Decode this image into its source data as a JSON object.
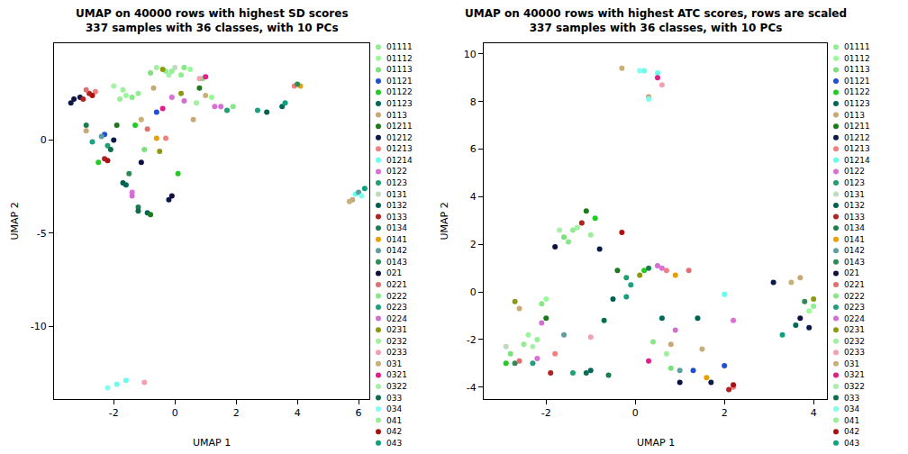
{
  "chart_data": [
    {
      "type": "scatter",
      "title": "UMAP on 40000 rows with highest SD scores",
      "subtitle": "337 samples with 36 classes, with 10 PCs",
      "x_label": "UMAP 1",
      "y_label": "UMAP 2",
      "xlim": [
        -3.95,
        6.35
      ],
      "ylim": [
        -13.9,
        5.2
      ],
      "xticks": [
        -2,
        0,
        2,
        4,
        6
      ],
      "yticks": [
        -10,
        -5,
        0
      ],
      "grid": false,
      "legend": "right",
      "marker": "circle",
      "series": [
        {
          "name": "01111",
          "color": "#90ee90",
          "x": [
            -0.3,
            0.2,
            -1.2
          ],
          "y": [
            3.7,
            3.5,
            2.5
          ]
        },
        {
          "name": "01112",
          "color": "#98fb98",
          "x": [
            0.5,
            -1.6,
            1.2
          ],
          "y": [
            3.8,
            2.4,
            2.3
          ]
        },
        {
          "name": "01113",
          "color": "#7ce07c",
          "x": [
            -0.8,
            0.9,
            -1.0
          ],
          "y": [
            3.6,
            3.3,
            -0.5
          ]
        },
        {
          "name": "01121",
          "color": "#1f4fd8",
          "x": [
            -2.3,
            -0.6
          ],
          "y": [
            0.3,
            1.5
          ]
        },
        {
          "name": "01122",
          "color": "#22cc22",
          "x": [
            -2.5,
            -1.3,
            0.1
          ],
          "y": [
            -1.2,
            0.8,
            -1.8
          ]
        },
        {
          "name": "01123",
          "color": "#00695c",
          "x": [
            -1.6,
            3.5,
            -0.9
          ],
          "y": [
            -2.4,
            1.8,
            -3.9
          ]
        },
        {
          "name": "0113",
          "color": "#c8a878",
          "x": [
            -2.9,
            0.6,
            -0.7,
            5.8
          ],
          "y": [
            0.5,
            1.1,
            2.8,
            -3.2
          ]
        },
        {
          "name": "01211",
          "color": "#1b7a1b",
          "x": [
            -1.9,
            -0.8,
            0.8
          ],
          "y": [
            0.8,
            -4.0,
            2.8
          ]
        },
        {
          "name": "01212",
          "color": "#0a1a4a",
          "x": [
            -3.4,
            -3.1,
            -0.2,
            -2.0
          ],
          "y": [
            2.0,
            2.3,
            -3.2,
            0.0
          ]
        },
        {
          "name": "01213",
          "color": "#f08080",
          "x": [
            -2.6,
            -0.3,
            3.9
          ],
          "y": [
            2.6,
            0.1,
            2.9
          ]
        },
        {
          "name": "01214",
          "color": "#66ffee",
          "x": [
            -1.9,
            -1.6,
            5.9
          ],
          "y": [
            -13.1,
            -12.9,
            -2.9
          ]
        },
        {
          "name": "0122",
          "color": "#da70d6",
          "x": [
            -1.4,
            1.3,
            -0.1
          ],
          "y": [
            -2.8,
            1.8,
            2.3
          ]
        },
        {
          "name": "0123",
          "color": "#20a070",
          "x": [
            1.7,
            -2.2
          ],
          "y": [
            1.6,
            -0.3
          ]
        },
        {
          "name": "0131",
          "color": "#c0dcc0",
          "x": [
            0.0
          ],
          "y": [
            3.9
          ]
        },
        {
          "name": "0132",
          "color": "#006050",
          "x": [
            -1.7,
            3.0
          ],
          "y": [
            -2.3,
            1.5
          ]
        },
        {
          "name": "0133",
          "color": "#b22222",
          "x": [
            -2.8,
            -2.3,
            -3.0
          ],
          "y": [
            2.5,
            -1.0,
            2.2
          ]
        },
        {
          "name": "0134",
          "color": "#1a7f4e",
          "x": [
            -1.2,
            -2.9
          ],
          "y": [
            -3.6,
            0.8
          ]
        },
        {
          "name": "0141",
          "color": "#e8a000",
          "x": [
            4.1,
            -0.6
          ],
          "y": [
            2.9,
            0.1
          ]
        },
        {
          "name": "0142",
          "color": "#5f9ea0",
          "x": [
            6.0,
            -2.4
          ],
          "y": [
            -2.8,
            0.2
          ]
        },
        {
          "name": "0143",
          "color": "#2e8b57",
          "x": [
            4.0,
            -1.5
          ],
          "y": [
            3.0,
            -1.8
          ]
        },
        {
          "name": "021",
          "color": "#101040",
          "x": [
            -3.3,
            -0.1,
            -1.1
          ],
          "y": [
            2.2,
            -3.0,
            -1.2
          ]
        },
        {
          "name": "0221",
          "color": "#e07070",
          "x": [
            -0.9,
            -2.9
          ],
          "y": [
            0.6,
            2.7
          ]
        },
        {
          "name": "0222",
          "color": "#88e888",
          "x": [
            0.3,
            1.9,
            -1.4
          ],
          "y": [
            3.9,
            1.8,
            2.3
          ]
        },
        {
          "name": "0223",
          "color": "#20a080",
          "x": [
            -2.7,
            2.7
          ],
          "y": [
            -0.1,
            1.6
          ]
        },
        {
          "name": "0224",
          "color": "#d070d0",
          "x": [
            -1.4,
            0.3,
            1.5
          ],
          "y": [
            -3.0,
            2.1,
            1.8
          ]
        },
        {
          "name": "0231",
          "color": "#8b9a10",
          "x": [
            -0.4,
            0.2,
            -0.5
          ],
          "y": [
            3.8,
            2.5,
            -0.6
          ]
        },
        {
          "name": "0232",
          "color": "#a0f0a0",
          "x": [
            -0.6,
            -1.7,
            0.7
          ],
          "y": [
            3.9,
            2.7,
            2.0
          ]
        },
        {
          "name": "0233",
          "color": "#f5a0b0",
          "x": [
            -1.0,
            0.8
          ],
          "y": [
            -13.0,
            3.3
          ]
        },
        {
          "name": "031",
          "color": "#c8b078",
          "x": [
            -1.1,
            5.7,
            1.0
          ],
          "y": [
            1.1,
            -3.3,
            2.4
          ]
        },
        {
          "name": "0321",
          "color": "#e0208a",
          "x": [
            1.0,
            -0.4
          ],
          "y": [
            3.4,
            1.7
          ]
        },
        {
          "name": "0322",
          "color": "#a8f0a8",
          "x": [
            -0.2,
            -2.0
          ],
          "y": [
            3.5,
            2.9
          ]
        },
        {
          "name": "033",
          "color": "#0b6e4f",
          "x": [
            -1.2,
            -2.1
          ],
          "y": [
            -3.8,
            -0.5
          ]
        },
        {
          "name": "034",
          "color": "#80ffee",
          "x": [
            -2.2,
            6.1
          ],
          "y": [
            -13.3,
            -3.0
          ]
        },
        {
          "name": "041",
          "color": "#99ee99",
          "x": [
            -0.1,
            -1.8
          ],
          "y": [
            3.7,
            2.2
          ]
        },
        {
          "name": "042",
          "color": "#aa1111",
          "x": [
            -2.7,
            -2.2
          ],
          "y": [
            2.4,
            -1.1
          ]
        },
        {
          "name": "043",
          "color": "#10a080",
          "x": [
            3.6,
            6.2
          ],
          "y": [
            2.0,
            -2.6
          ]
        }
      ]
    },
    {
      "type": "scatter",
      "title": "UMAP on 40000 rows with highest ATC scores, rows are scaled",
      "subtitle": "337 samples with 36 classes, with 10 PCs",
      "x_label": "UMAP 1",
      "y_label": "UMAP 2",
      "xlim": [
        -3.4,
        4.3
      ],
      "ylim": [
        -4.5,
        10.45
      ],
      "xticks": [
        -2,
        0,
        2,
        4
      ],
      "yticks": [
        -4,
        -2,
        0,
        2,
        4,
        6,
        8,
        10
      ],
      "grid": false,
      "legend": "right",
      "marker": "circle",
      "series": [
        {
          "name": "01111",
          "color": "#90ee90",
          "x": [
            -1.4,
            -2.5,
            4.0
          ],
          "y": [
            2.6,
            -2.2,
            -0.6
          ]
        },
        {
          "name": "01112",
          "color": "#98fb98",
          "x": [
            -1.2,
            -2.0,
            3.9
          ],
          "y": [
            2.9,
            -0.3,
            -0.8
          ]
        },
        {
          "name": "01113",
          "color": "#7ce07c",
          "x": [
            -1.6,
            -2.8,
            0.8
          ],
          "y": [
            2.3,
            -2.6,
            -3.2
          ]
        },
        {
          "name": "01121",
          "color": "#1f4fd8",
          "x": [
            1.3,
            2.0
          ],
          "y": [
            -3.3,
            -3.1
          ]
        },
        {
          "name": "01122",
          "color": "#22cc22",
          "x": [
            -0.9,
            -2.9,
            0.2
          ],
          "y": [
            3.1,
            -3.0,
            0.9
          ]
        },
        {
          "name": "01123",
          "color": "#00695c",
          "x": [
            -1.0,
            0.6,
            3.6
          ],
          "y": [
            -3.3,
            -1.1,
            -1.4
          ]
        },
        {
          "name": "0113",
          "color": "#c8a878",
          "x": [
            -2.6,
            0.8,
            3.7,
            0.3
          ],
          "y": [
            -0.7,
            -2.2,
            0.6,
            8.2
          ]
        },
        {
          "name": "01211",
          "color": "#1b7a1b",
          "x": [
            -1.1,
            -2.0,
            -0.4
          ],
          "y": [
            3.4,
            -1.1,
            0.9
          ]
        },
        {
          "name": "01212",
          "color": "#0a1a4a",
          "x": [
            -0.8,
            1.7,
            3.9,
            3.1
          ],
          "y": [
            1.8,
            -3.8,
            -1.5,
            0.4
          ]
        },
        {
          "name": "01213",
          "color": "#f08080",
          "x": [
            0.7,
            -1.8,
            2.2
          ],
          "y": [
            0.9,
            -2.6,
            -4.0
          ]
        },
        {
          "name": "01214",
          "color": "#66ffee",
          "x": [
            0.2,
            0.5,
            2.0
          ],
          "y": [
            9.3,
            9.2,
            -0.1
          ]
        },
        {
          "name": "0122",
          "color": "#da70d6",
          "x": [
            0.6,
            2.2,
            -2.2
          ],
          "y": [
            1.0,
            -1.2,
            -2.8
          ]
        },
        {
          "name": "0123",
          "color": "#20a070",
          "x": [
            -0.2,
            -1.4
          ],
          "y": [
            0.6,
            -3.4
          ]
        },
        {
          "name": "0131",
          "color": "#c0dcc0",
          "x": [
            -2.9
          ],
          "y": [
            -2.3
          ]
        },
        {
          "name": "0132",
          "color": "#006050",
          "x": [
            -0.5,
            1.4
          ],
          "y": [
            -0.3,
            -1.1
          ]
        },
        {
          "name": "0133",
          "color": "#b22222",
          "x": [
            2.1,
            -1.2,
            -1.9
          ],
          "y": [
            -4.1,
            2.9,
            -3.4
          ]
        },
        {
          "name": "0134",
          "color": "#1a7f4e",
          "x": [
            -0.6,
            0.3
          ],
          "y": [
            -3.5,
            1.0
          ]
        },
        {
          "name": "0141",
          "color": "#e8a000",
          "x": [
            1.6,
            0.9
          ],
          "y": [
            -3.6,
            0.7
          ]
        },
        {
          "name": "0142",
          "color": "#5f9ea0",
          "x": [
            1.0,
            -1.6
          ],
          "y": [
            -3.3,
            -1.8
          ]
        },
        {
          "name": "0143",
          "color": "#2e8b57",
          "x": [
            3.8,
            -2.7
          ],
          "y": [
            -0.4,
            -3.0
          ]
        },
        {
          "name": "021",
          "color": "#101040",
          "x": [
            -1.8,
            1.0,
            3.7
          ],
          "y": [
            1.9,
            -3.8,
            -1.1
          ]
        },
        {
          "name": "0221",
          "color": "#e07070",
          "x": [
            1.2,
            -2.6
          ],
          "y": [
            0.9,
            -2.9
          ]
        },
        {
          "name": "0222",
          "color": "#88e888",
          "x": [
            -1.5,
            -2.1,
            0.4
          ],
          "y": [
            2.1,
            -0.5,
            -2.1
          ]
        },
        {
          "name": "0223",
          "color": "#20a080",
          "x": [
            -0.1,
            -2.3
          ],
          "y": [
            0.3,
            -3.0
          ]
        },
        {
          "name": "0224",
          "color": "#d070d0",
          "x": [
            0.5,
            -2.1,
            0.9
          ],
          "y": [
            1.1,
            -1.3,
            -1.6
          ]
        },
        {
          "name": "0231",
          "color": "#8b9a10",
          "x": [
            -2.7,
            0.1,
            4.0
          ],
          "y": [
            -0.4,
            0.7,
            -0.3
          ]
        },
        {
          "name": "0232",
          "color": "#a0f0a0",
          "x": [
            -1.3,
            -2.4,
            0.7
          ],
          "y": [
            2.7,
            -1.8,
            -2.6
          ]
        },
        {
          "name": "0233",
          "color": "#f5a0b0",
          "x": [
            0.6,
            -1.0
          ],
          "y": [
            8.7,
            -1.9
          ]
        },
        {
          "name": "031",
          "color": "#c8b078",
          "x": [
            -0.3,
            1.5,
            3.5
          ],
          "y": [
            9.4,
            -2.4,
            0.4
          ]
        },
        {
          "name": "0321",
          "color": "#e0208a",
          "x": [
            0.5,
            0.3
          ],
          "y": [
            9.0,
            -2.9
          ]
        },
        {
          "name": "0322",
          "color": "#a8f0a8",
          "x": [
            -1.7,
            -2.3
          ],
          "y": [
            2.6,
            -2.3
          ]
        },
        {
          "name": "033",
          "color": "#0b6e4f",
          "x": [
            -0.7,
            -1.1
          ],
          "y": [
            -1.2,
            -3.4
          ]
        },
        {
          "name": "034",
          "color": "#80ffee",
          "x": [
            0.1,
            0.3
          ],
          "y": [
            9.3,
            8.1
          ]
        },
        {
          "name": "041",
          "color": "#99ee99",
          "x": [
            -1.0,
            -2.2
          ],
          "y": [
            2.4,
            -2.0
          ]
        },
        {
          "name": "042",
          "color": "#aa1111",
          "x": [
            2.2,
            -0.3
          ],
          "y": [
            -3.9,
            2.5
          ]
        },
        {
          "name": "043",
          "color": "#10a080",
          "x": [
            3.3,
            -0.2
          ],
          "y": [
            -1.8,
            -0.2
          ]
        }
      ]
    }
  ]
}
